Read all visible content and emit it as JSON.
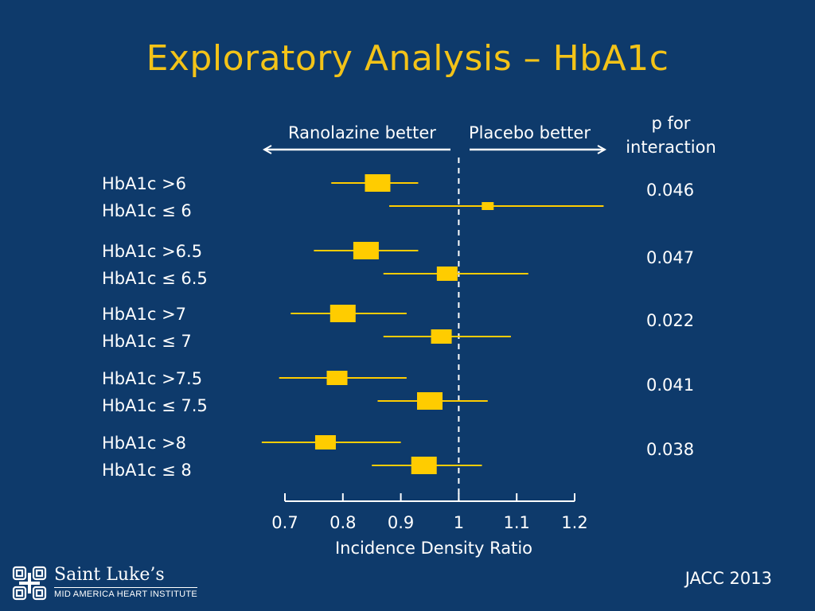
{
  "slide": {
    "title": "Exploratory Analysis – HbA1c",
    "left_direction": "Ranolazine better",
    "right_direction": "Placebo better",
    "p_header_line1": "p for",
    "p_header_line2": "interaction",
    "source": "JACC 2013",
    "logo": {
      "name": "Saint Luke’s",
      "subtitle": "MID AMERICA HEART INSTITUTE",
      "icon": "cross-quatrefoil-icon"
    }
  },
  "colors": {
    "background": "#0e3a6b",
    "title": "#f3c318",
    "marker": "#ffcc00",
    "text": "#ffffff"
  },
  "chart_data": {
    "type": "forest",
    "xlabel": "Incidence Density Ratio",
    "xlim": [
      0.7,
      1.2
    ],
    "xticks": [
      0.7,
      0.8,
      0.9,
      1,
      1.1,
      1.2
    ],
    "xtick_labels": [
      "0.7",
      "0.8",
      "0.9",
      "1",
      "1.1",
      "1.2"
    ],
    "reference_line": 1,
    "groups": [
      {
        "p_interaction": "0.046",
        "rows": [
          {
            "label": "HbA1c >6",
            "estimate": 0.86,
            "ci": [
              0.78,
              0.93
            ],
            "weight": "large"
          },
          {
            "label": "HbA1c ≤ 6",
            "estimate": 1.05,
            "ci": [
              0.88,
              1.25
            ],
            "weight": "small"
          }
        ]
      },
      {
        "p_interaction": "0.047",
        "rows": [
          {
            "label": "HbA1c >6.5",
            "estimate": 0.84,
            "ci": [
              0.75,
              0.93
            ],
            "weight": "large"
          },
          {
            "label": "HbA1c ≤ 6.5",
            "estimate": 0.98,
            "ci": [
              0.87,
              1.12
            ],
            "weight": "medium"
          }
        ]
      },
      {
        "p_interaction": "0.022",
        "rows": [
          {
            "label": "HbA1c >7",
            "estimate": 0.8,
            "ci": [
              0.71,
              0.91
            ],
            "weight": "large"
          },
          {
            "label": "HbA1c ≤ 7",
            "estimate": 0.97,
            "ci": [
              0.87,
              1.09
            ],
            "weight": "medium"
          }
        ]
      },
      {
        "p_interaction": "0.041",
        "rows": [
          {
            "label": "HbA1c >7.5",
            "estimate": 0.79,
            "ci": [
              0.69,
              0.91
            ],
            "weight": "medium"
          },
          {
            "label": "HbA1c ≤ 7.5",
            "estimate": 0.95,
            "ci": [
              0.86,
              1.05
            ],
            "weight": "large"
          }
        ]
      },
      {
        "p_interaction": "0.038",
        "rows": [
          {
            "label": "HbA1c >8",
            "estimate": 0.77,
            "ci": [
              0.66,
              0.9
            ],
            "weight": "medium"
          },
          {
            "label": "HbA1c ≤ 8",
            "estimate": 0.94,
            "ci": [
              0.85,
              1.04
            ],
            "weight": "large"
          }
        ]
      }
    ]
  }
}
